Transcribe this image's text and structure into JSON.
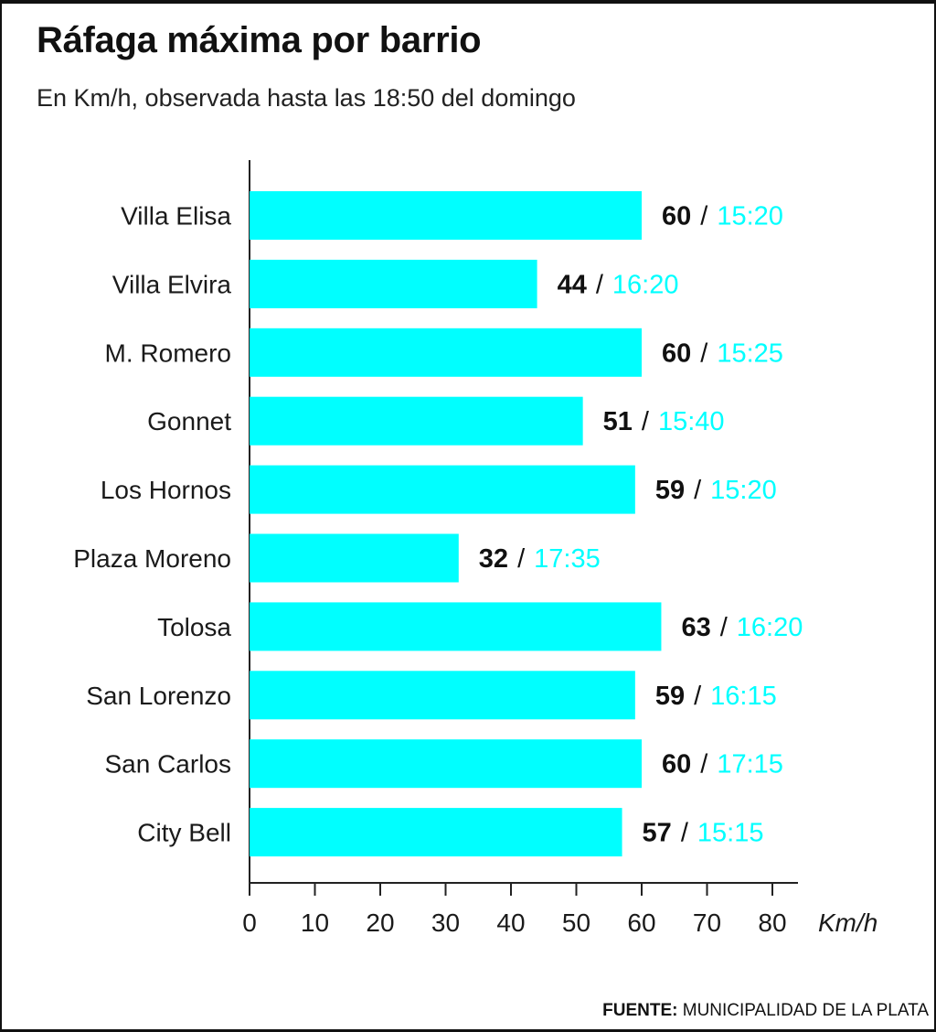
{
  "title": "Ráfaga máxima por barrio",
  "subtitle": "En Km/h, observada hasta las 18:50 del domingo",
  "source": {
    "label": "FUENTE:",
    "text": "MUNICIPALIDAD DE LA PLATA"
  },
  "colors": {
    "bar": "#00ffff",
    "time_label": "#00ffff",
    "value_label": "#111111",
    "axis": "#222222"
  },
  "chart_data": {
    "type": "bar",
    "orientation": "horizontal",
    "categories": [
      "Villa Elisa",
      "Villa Elvira",
      "M. Romero",
      "Gonnet",
      "Los Hornos",
      "Plaza Moreno",
      "Tolosa",
      "San Lorenzo",
      "San Carlos",
      "City Bell"
    ],
    "values": [
      60,
      44,
      60,
      51,
      59,
      32,
      63,
      59,
      60,
      57
    ],
    "times": [
      "15:20",
      "16:20",
      "15:25",
      "15:40",
      "15:20",
      "17:35",
      "16:20",
      "16:15",
      "17:15",
      "15:15"
    ],
    "separator": "/",
    "xlim": [
      0,
      80
    ],
    "xticks": [
      0,
      10,
      20,
      30,
      40,
      50,
      60,
      70,
      80
    ],
    "xlabel": "Km/h",
    "grid": false
  }
}
